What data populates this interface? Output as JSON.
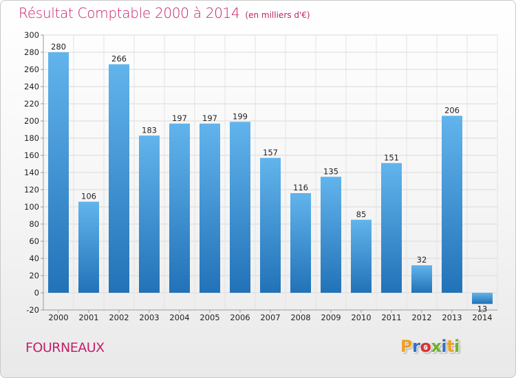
{
  "title": {
    "main": "Résultat Comptable 2000 à 2014",
    "sub": "(en milliers d'€)"
  },
  "commune": "FOURNEAUX",
  "logo": {
    "letters": [
      "P",
      "r",
      "o",
      "x",
      "i",
      "t",
      "i"
    ],
    "colors": [
      "#f0a020",
      "#3070c0",
      "#e03030",
      "#70b030",
      "#3070c0",
      "#f0a020",
      "#70b030"
    ]
  },
  "colors": {
    "bar_top": "#62b4ec",
    "bar_bottom": "#2272b8",
    "title": "#c4206a"
  },
  "chart_data": {
    "type": "bar",
    "title": "Résultat Comptable 2000 à 2014",
    "ylabel": "en milliers d'€",
    "xlabel": "",
    "categories": [
      "2000",
      "2001",
      "2002",
      "2003",
      "2004",
      "2005",
      "2006",
      "2007",
      "2008",
      "2009",
      "2010",
      "2011",
      "2012",
      "2013",
      "2014"
    ],
    "values": [
      280,
      106,
      266,
      183,
      197,
      197,
      199,
      157,
      116,
      135,
      85,
      151,
      32,
      206,
      -13
    ],
    "ylim": [
      -20,
      300
    ],
    "yticks": [
      -20,
      0,
      20,
      40,
      60,
      80,
      100,
      120,
      140,
      160,
      180,
      200,
      220,
      240,
      260,
      280,
      300
    ],
    "grid": true
  }
}
